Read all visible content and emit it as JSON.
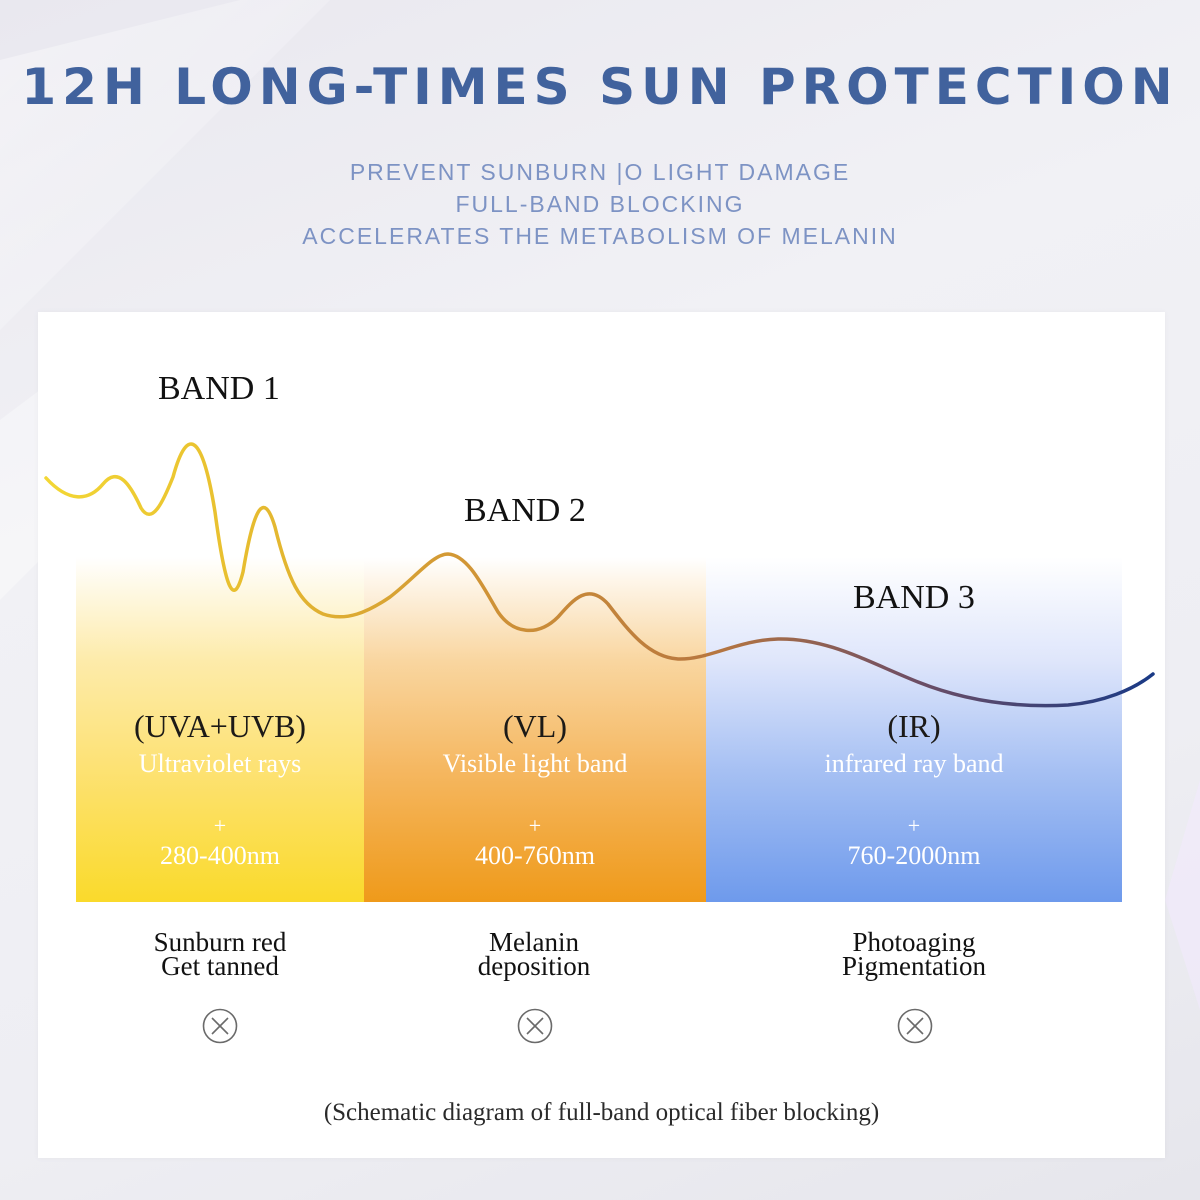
{
  "header": {
    "title": "12H LONG-TIMES SUN PROTECTION",
    "subtitle_lines": [
      "PREVENT SUNBURN |O LIGHT DAMAGE",
      "FULL-BAND BLOCKING",
      "ACCELERATES THE METABOLISM OF MELANIN"
    ]
  },
  "bands": [
    {
      "label": "BAND 1",
      "abbr": "(UVA+UVB)",
      "description": "Ultraviolet rays",
      "plus": "+",
      "range": "280-400nm",
      "effect_lines": [
        "Sunburn red",
        "Get tanned"
      ],
      "color": "#fada2b"
    },
    {
      "label": "BAND 2",
      "abbr": "(VL)",
      "description": "Visible light band",
      "plus": "+",
      "range": "400-760nm",
      "effect_lines": [
        "Melanin",
        "deposition"
      ],
      "color": "#ef9a1a"
    },
    {
      "label": "BAND 3",
      "abbr": "(IR)",
      "description": "infrared ray band",
      "plus": "+",
      "range": "760-2000nm",
      "effect_lines": [
        "Photoaging",
        "Pigmentation"
      ],
      "color": "#6e9aec"
    }
  ],
  "icons": {
    "blocked": "circle-x-icon"
  },
  "caption": "(Schematic diagram of full-band optical fiber blocking)",
  "colors": {
    "title": "#41629d",
    "subtitle": "#7d93c4",
    "wave_start": "#f0cf2e",
    "wave_mid": "#c98634",
    "wave_end": "#1a3a86"
  }
}
